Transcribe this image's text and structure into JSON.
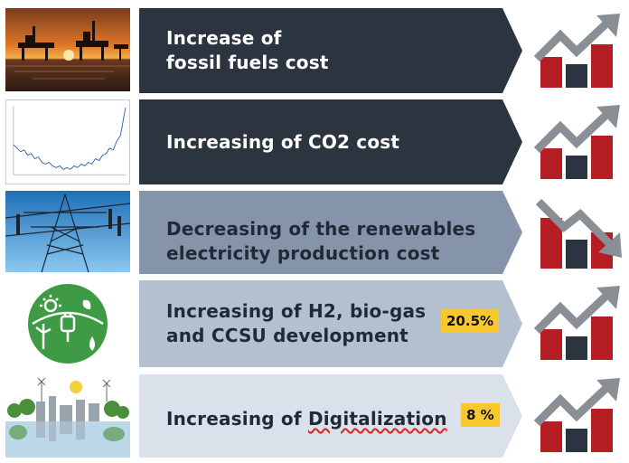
{
  "rows": [
    {
      "line1": "Increase of",
      "line2": "fossil fuels cost",
      "image": "offshore-oil-platform-sunset",
      "trend": "up",
      "text_color": "#ffffff"
    },
    {
      "line1": "Increasing of CO2 cost",
      "image": "co2-price-line-chart",
      "trend": "up",
      "text_color": "#ffffff"
    },
    {
      "line1": "Decreasing of the renewables",
      "line2": "electricity production cost",
      "image": "power-transmission-tower",
      "trend": "down",
      "text_color": "#1f2a36"
    },
    {
      "line1": "Increasing of H2, bio-gas",
      "line2": "and CCSU development",
      "badge": "20.5%",
      "image": "green-energy-icon",
      "trend": "up",
      "text_color": "#1f2a36"
    },
    {
      "line1": "Increasing of ",
      "line1_b": "Digitalization",
      "badge": "8 %",
      "image": "green-city-skyline",
      "trend": "up",
      "text_color": "#1f2a36"
    }
  ],
  "colors": {
    "arrow_1": "#2c3440",
    "arrow_2": "#2c3440",
    "arrow_3": "#8594a8",
    "arrow_4": "#b2c0d0",
    "arrow_5": "#dae1ea",
    "badge": "#f7c72f",
    "bar_red": "#b51f24",
    "bar_dark": "#2b3440",
    "trend_arrow": "#8a8f95"
  }
}
